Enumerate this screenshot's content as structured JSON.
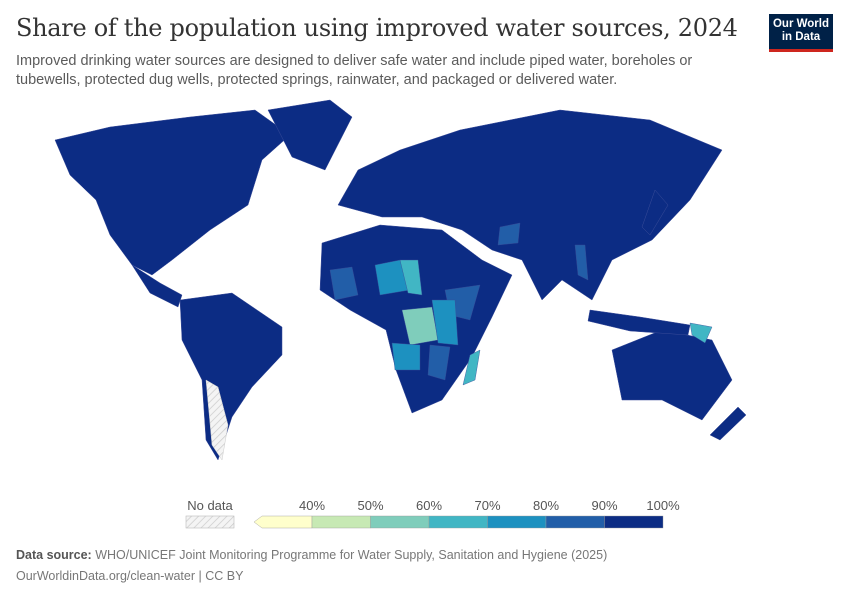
{
  "header": {
    "title": "Share of the population using improved water sources, 2024",
    "subtitle": "Improved drinking water sources are designed to deliver safe water and include piped water, boreholes or tubewells, protected dug wells, protected springs, rainwater, and packaged or delivered water.",
    "logo_text": "Our World in Data"
  },
  "legend": {
    "no_data_label": "No data",
    "ticks": [
      "40%",
      "50%",
      "60%",
      "70%",
      "80%",
      "90%",
      "100%"
    ],
    "bins": [
      {
        "range": "<40%",
        "color": "#ffffcc"
      },
      {
        "range": "40–50%",
        "color": "#c7e9b4"
      },
      {
        "range": "50–60%",
        "color": "#7fcdbb"
      },
      {
        "range": "60–70%",
        "color": "#41b6c4"
      },
      {
        "range": "70–80%",
        "color": "#1d91c0"
      },
      {
        "range": "80–90%",
        "color": "#225ea8"
      },
      {
        "range": "90–100%",
        "color": "#0c2c84"
      }
    ]
  },
  "footer": {
    "source_label": "Data source:",
    "source": "WHO/UNICEF Joint Monitoring Programme for Water Supply, Sanitation and Hygiene (2025)",
    "url": "OurWorldinData.org/clean-water | CC BY"
  }
}
